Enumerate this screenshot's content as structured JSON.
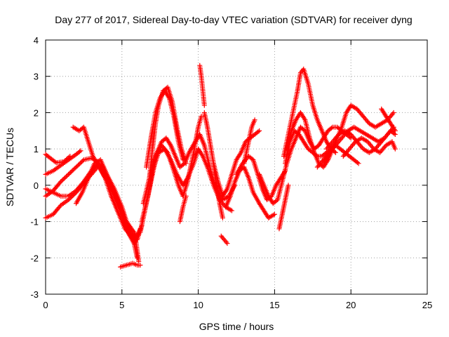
{
  "chart_data": {
    "type": "scatter",
    "title": "Day 277 of 2017, Sidereal Day-to-day VTEC variation (SDTVAR) for receiver dyng",
    "xlabel": "GPS time / hours",
    "ylabel": "SDTVAR / TECUs",
    "xlim": [
      0,
      25
    ],
    "ylim": [
      -3,
      4
    ],
    "xticks": [
      "0",
      "5",
      "10",
      "15",
      "20",
      "25"
    ],
    "yticks": [
      "-3",
      "-2",
      "-1",
      "0",
      "1",
      "2",
      "3",
      "4"
    ],
    "grid": true,
    "marker": "+",
    "color": "#ff0000",
    "series": [
      {
        "x": [
          0.0,
          0.3,
          0.7,
          1.2,
          1.6
        ],
        "y": [
          0.85,
          0.75,
          0.62,
          0.65,
          0.8
        ]
      },
      {
        "x": [
          0.0,
          0.5,
          1.0,
          1.5,
          2.0,
          2.3
        ],
        "y": [
          0.3,
          0.4,
          0.55,
          0.7,
          0.85,
          0.95
        ]
      },
      {
        "x": [
          0.0,
          0.5,
          1.0,
          1.5,
          2.0,
          2.5,
          3.0,
          3.4,
          3.8,
          4.3,
          4.8,
          5.3,
          5.8,
          6.0
        ],
        "y": [
          -0.1,
          -0.2,
          -0.3,
          -0.3,
          -0.15,
          0.1,
          0.4,
          0.6,
          0.5,
          0.0,
          -0.5,
          -1.0,
          -1.3,
          -1.5
        ]
      },
      {
        "x": [
          0.0,
          0.5,
          1.0,
          1.5,
          2.0,
          2.5,
          3.0,
          3.5,
          3.8,
          4.3,
          4.8,
          5.3,
          5.8,
          6.0
        ],
        "y": [
          -0.9,
          -0.8,
          -0.55,
          -0.4,
          -0.2,
          0.05,
          0.3,
          0.55,
          0.3,
          -0.1,
          -0.6,
          -1.2,
          -1.6,
          -2.0
        ]
      },
      {
        "x": [
          0.0,
          0.5,
          1.0,
          1.5,
          2.0,
          2.5,
          3.0,
          3.4,
          4.0,
          4.5,
          5.0,
          5.4,
          5.8,
          6.2
        ],
        "y": [
          -0.3,
          -0.15,
          0.1,
          0.3,
          0.5,
          0.7,
          0.75,
          0.65,
          0.2,
          -0.3,
          -0.8,
          -1.3,
          -1.6,
          -1.2
        ]
      },
      {
        "x": [
          1.8,
          2.2,
          2.5,
          2.8,
          3.1,
          3.5,
          3.9,
          4.3,
          4.8,
          5.2,
          5.6,
          6.0,
          6.3
        ],
        "y": [
          1.6,
          1.5,
          1.6,
          1.2,
          0.8,
          0.5,
          0.2,
          -0.3,
          -0.8,
          -1.2,
          -1.4,
          -1.5,
          -1.1
        ]
      },
      {
        "x": [
          2.0,
          2.4,
          2.8,
          3.2,
          3.6,
          4.0,
          4.5,
          5.0,
          5.3,
          5.6,
          5.9,
          6.1
        ],
        "y": [
          -0.5,
          -0.2,
          0.2,
          0.6,
          0.7,
          0.3,
          -0.1,
          -0.6,
          -1.0,
          -1.3,
          -1.5,
          -2.1
        ]
      },
      {
        "x": [
          4.9,
          5.3,
          5.7,
          6.0,
          6.2
        ],
        "y": [
          -2.25,
          -2.2,
          -2.15,
          -2.2,
          -2.2
        ]
      },
      {
        "x": [
          6.2,
          6.6,
          7.0,
          7.3,
          7.6,
          7.9,
          8.2,
          8.5,
          8.8,
          9.1,
          9.4,
          9.8,
          10.1,
          10.4,
          10.7,
          11.0,
          11.3,
          11.6,
          12.0,
          12.4
        ],
        "y": [
          -1.3,
          -0.5,
          0.3,
          0.9,
          1.2,
          1.3,
          1.1,
          0.8,
          0.5,
          0.6,
          0.9,
          1.2,
          1.4,
          1.1,
          0.6,
          0.1,
          -0.2,
          -0.4,
          -0.3,
          0.0
        ]
      },
      {
        "x": [
          6.3,
          6.7,
          7.0,
          7.4,
          7.8,
          8.2,
          8.6,
          9.0,
          9.3,
          9.7,
          10.0,
          10.3,
          10.6,
          11.0,
          11.4,
          11.8,
          12.2
        ],
        "y": [
          -1.0,
          -0.3,
          0.4,
          0.9,
          1.0,
          0.7,
          0.3,
          0.0,
          0.2,
          0.6,
          1.0,
          0.8,
          0.5,
          0.0,
          -0.4,
          -0.6,
          -0.7
        ]
      },
      {
        "x": [
          6.8,
          7.0,
          7.2,
          7.4,
          7.7,
          8.0,
          8.3,
          8.6,
          8.9,
          9.2
        ],
        "y": [
          0.2,
          1.0,
          1.7,
          2.2,
          2.6,
          2.7,
          2.3,
          1.6,
          1.0,
          0.6
        ]
      },
      {
        "x": [
          6.6,
          6.9,
          7.2,
          7.5,
          7.8,
          8.1,
          8.4,
          8.7,
          9.0
        ],
        "y": [
          0.5,
          1.3,
          2.0,
          2.4,
          2.6,
          2.4,
          1.9,
          1.2,
          0.7
        ]
      },
      {
        "x": [
          6.4,
          6.8,
          7.2,
          7.6,
          8.0,
          8.4,
          8.7,
          9.0,
          9.3,
          9.7,
          10.0,
          10.2
        ],
        "y": [
          -0.5,
          0.2,
          0.8,
          1.1,
          0.9,
          0.4,
          0.0,
          -0.3,
          0.1,
          0.9,
          1.6,
          1.9
        ]
      },
      {
        "x": [
          8.8,
          9.0,
          9.2
        ],
        "y": [
          -1.0,
          -0.6,
          -0.3
        ]
      },
      {
        "x": [
          10.1,
          10.2,
          10.3,
          10.4
        ],
        "y": [
          3.3,
          3.0,
          2.6,
          2.2
        ]
      },
      {
        "x": [
          10.4,
          10.6,
          10.8,
          11.0,
          11.2,
          11.4,
          11.6
        ],
        "y": [
          2.0,
          1.6,
          1.1,
          0.6,
          0.0,
          -0.5,
          -0.9
        ]
      },
      {
        "x": [
          11.0,
          11.3,
          11.6,
          11.9,
          12.2,
          12.5,
          12.8,
          13.1,
          13.4,
          13.7,
          14.0
        ],
        "y": [
          0.6,
          0.1,
          -0.3,
          -0.1,
          0.3,
          0.7,
          0.9,
          1.2,
          1.3,
          1.4,
          1.5
        ]
      },
      {
        "x": [
          11.5,
          11.7,
          11.9
        ],
        "y": [
          -1.4,
          -1.5,
          -1.6
        ]
      },
      {
        "x": [
          11.8,
          12.1,
          12.4,
          12.7,
          13.0,
          13.3,
          13.6,
          14.0,
          14.3,
          14.6,
          15.0
        ],
        "y": [
          -0.6,
          -0.3,
          0.1,
          0.4,
          0.5,
          0.2,
          -0.2,
          -0.5,
          -0.7,
          -0.9,
          -0.8
        ]
      },
      {
        "x": [
          12.5,
          12.9,
          13.3,
          13.6,
          13.9,
          14.2,
          14.5,
          14.8,
          15.1,
          15.4,
          15.7
        ],
        "y": [
          0.3,
          0.6,
          0.8,
          0.7,
          0.3,
          -0.1,
          -0.4,
          -0.3,
          0.0,
          0.2,
          0.4
        ]
      },
      {
        "x": [
          13.0,
          13.3,
          13.5,
          13.7
        ],
        "y": [
          0.6,
          1.2,
          1.6,
          1.8
        ]
      },
      {
        "x": [
          14.0,
          14.3,
          14.6,
          14.9,
          15.2,
          15.5,
          15.8,
          16.1,
          16.4,
          16.7,
          17.0,
          17.3,
          17.6,
          17.9,
          18.2,
          18.5,
          18.8,
          19.1,
          19.4,
          19.7,
          20.0
        ],
        "y": [
          0.3,
          0.0,
          -0.3,
          -0.5,
          -0.4,
          0.1,
          0.6,
          1.0,
          1.3,
          1.6,
          1.5,
          1.2,
          1.0,
          1.1,
          1.3,
          1.5,
          1.6,
          1.6,
          1.5,
          1.4,
          1.3
        ]
      },
      {
        "x": [
          15.3,
          15.5,
          15.7,
          15.9
        ],
        "y": [
          -1.2,
          -0.8,
          -0.4,
          0.0
        ]
      },
      {
        "x": [
          15.6,
          15.9,
          16.2,
          16.5,
          16.7,
          16.9,
          17.2,
          17.5,
          17.8,
          18.1,
          18.4,
          18.7,
          19.0
        ],
        "y": [
          0.8,
          1.4,
          2.0,
          2.6,
          3.1,
          3.2,
          2.8,
          2.2,
          1.8,
          1.5,
          1.2,
          1.0,
          0.9
        ]
      },
      {
        "x": [
          15.8,
          16.1,
          16.4,
          16.7,
          17.0,
          17.3,
          17.6,
          17.9,
          18.2,
          18.5,
          18.8
        ],
        "y": [
          1.0,
          1.5,
          1.8,
          2.0,
          1.8,
          1.3,
          0.9,
          0.6,
          0.5,
          0.7,
          1.0
        ]
      },
      {
        "x": [
          15.7,
          16.0,
          16.3,
          16.6,
          16.9,
          17.2,
          17.5,
          17.8,
          18.1,
          18.4,
          18.7,
          19.0,
          19.3,
          19.6,
          19.9,
          20.2,
          20.5
        ],
        "y": [
          0.6,
          1.2,
          1.5,
          1.4,
          1.2,
          1.0,
          0.9,
          0.8,
          0.8,
          0.9,
          1.0,
          1.1,
          1.0,
          0.9,
          0.8,
          0.7,
          0.6
        ]
      },
      {
        "x": [
          18.2,
          18.6,
          19.0,
          19.4,
          19.7,
          20.0,
          20.4,
          20.8,
          21.2,
          21.6,
          22.0,
          22.4,
          22.8
        ],
        "y": [
          0.6,
          0.9,
          1.2,
          1.6,
          2.0,
          2.2,
          2.1,
          1.9,
          1.7,
          1.6,
          1.7,
          1.8,
          2.0
        ]
      },
      {
        "x": [
          17.8,
          18.2,
          18.6,
          19.0,
          19.4,
          19.8,
          20.2,
          20.6,
          21.0,
          21.4,
          21.8,
          22.2,
          22.6,
          22.9
        ],
        "y": [
          0.5,
          0.7,
          0.9,
          1.1,
          1.3,
          1.5,
          1.6,
          1.5,
          1.4,
          1.3,
          1.2,
          1.3,
          1.5,
          1.4
        ]
      },
      {
        "x": [
          18.4,
          18.8,
          19.2,
          19.6,
          20.0,
          20.4,
          20.8,
          21.2,
          21.6,
          22.0,
          22.4,
          22.8
        ],
        "y": [
          1.0,
          1.2,
          1.4,
          1.5,
          1.4,
          1.2,
          1.0,
          0.9,
          1.0,
          1.2,
          1.4,
          1.6
        ]
      },
      {
        "x": [
          19.5,
          19.9,
          20.3,
          20.7,
          21.1,
          21.5,
          21.9,
          22.3,
          22.7,
          22.9
        ],
        "y": [
          0.8,
          1.0,
          1.2,
          1.3,
          1.2,
          1.0,
          0.9,
          1.1,
          1.2,
          1.0
        ]
      },
      {
        "x": [
          22.0,
          22.3,
          22.6,
          22.9
        ],
        "y": [
          2.1,
          1.9,
          1.7,
          1.5
        ]
      }
    ]
  }
}
